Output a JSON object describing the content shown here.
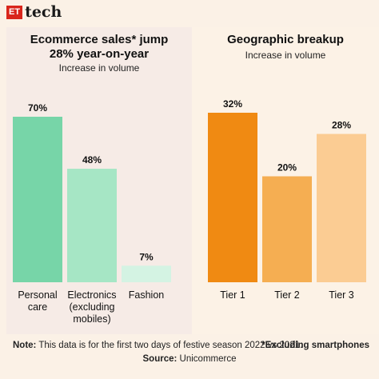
{
  "brand": {
    "box": "ET",
    "text": "tech"
  },
  "chart_data": [
    {
      "type": "bar",
      "title": "Ecommerce sales* jump 28% year-on-year",
      "title_lines": [
        "Ecommerce sales* jump",
        "28% year-on-year"
      ],
      "subtitle": "Increase in volume",
      "categories": [
        "Personal care",
        "Electronics (excluding mobiles)",
        "Fashion"
      ],
      "category_lines": [
        [
          "Personal",
          "care"
        ],
        [
          "Electronics",
          "(excluding",
          "mobiles)"
        ],
        [
          "Fashion"
        ]
      ],
      "values": [
        70,
        48,
        7
      ],
      "value_labels": [
        "70%",
        "48%",
        "7%"
      ],
      "colors": [
        "#77d5a8",
        "#a6e6c5",
        "#d4f3e3"
      ],
      "ylim": [
        0,
        70
      ]
    },
    {
      "type": "bar",
      "title": "Geographic breakup",
      "subtitle": "Increase in volume",
      "categories": [
        "Tier 1",
        "Tier 2",
        "Tier 3"
      ],
      "category_lines": [
        [
          "Tier 1"
        ],
        [
          "Tier 2"
        ],
        [
          "Tier 3"
        ]
      ],
      "values": [
        32,
        20,
        28
      ],
      "value_labels": [
        "32%",
        "20%",
        "28%"
      ],
      "colors": [
        "#f08a12",
        "#f5ae52",
        "#fbcc93"
      ],
      "ylim": [
        0,
        32
      ]
    }
  ],
  "footer": {
    "note_label": "Note:",
    "note_text": " This data is for the first two days of festive season 2022 vs 2021.",
    "excluding": "*Excluding smartphones",
    "source_label": "Source:",
    "source_text": " Unicommerce"
  }
}
